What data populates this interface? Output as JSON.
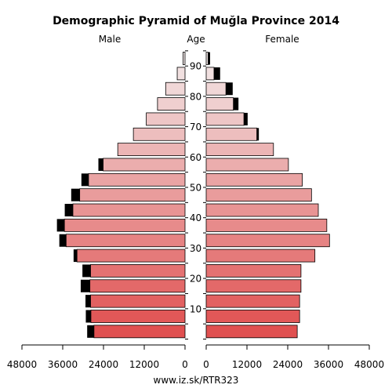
{
  "chart_data": {
    "type": "bar",
    "subtype": "population-pyramid",
    "title": "Demographic Pyramid of Muğla Province 2014",
    "left_label": "Male",
    "center_label": "Age",
    "right_label": "Female",
    "footer": "www.iz.sk/RTR323",
    "x_range": [
      0,
      48000
    ],
    "x_ticks": [
      48000,
      36000,
      24000,
      12000,
      0
    ],
    "x_tick_labels": [
      "48000",
      "36000",
      "24000",
      "12000",
      "0"
    ],
    "age_tick_labels": [
      "10",
      "20",
      "30",
      "40",
      "50",
      "60",
      "70",
      "80",
      "90"
    ],
    "age_groups": [
      "0-4",
      "5-9",
      "10-14",
      "15-19",
      "20-24",
      "25-29",
      "30-34",
      "35-39",
      "40-44",
      "45-49",
      "50-54",
      "55-59",
      "60-64",
      "65-69",
      "70-74",
      "75-79",
      "80-84",
      "85-89",
      "90+"
    ],
    "series": [
      {
        "name": "Male",
        "values": [
          26800,
          27700,
          27800,
          28000,
          27800,
          31800,
          35000,
          35500,
          33000,
          31000,
          28400,
          24100,
          19800,
          15200,
          11400,
          8100,
          5700,
          2300,
          600
        ],
        "excess": [
          2000,
          1500,
          1500,
          2700,
          2400,
          1000,
          2000,
          2200,
          2400,
          2500,
          2100,
          1400,
          0,
          0,
          0,
          0,
          0,
          0,
          0
        ]
      },
      {
        "name": "Female",
        "values": [
          26800,
          27500,
          27500,
          27900,
          27900,
          32000,
          36300,
          35500,
          33000,
          31000,
          28300,
          24200,
          19800,
          14900,
          11100,
          8000,
          5800,
          2300,
          550
        ],
        "excess": [
          0,
          0,
          0,
          0,
          0,
          0,
          0,
          0,
          0,
          0,
          0,
          0,
          0,
          600,
          1100,
          1500,
          2000,
          1800,
          600
        ]
      }
    ],
    "colors": {
      "excess": "#000000",
      "bar_stroke": "#000000",
      "young": "#e05050",
      "old": "#f2e8e8"
    }
  }
}
